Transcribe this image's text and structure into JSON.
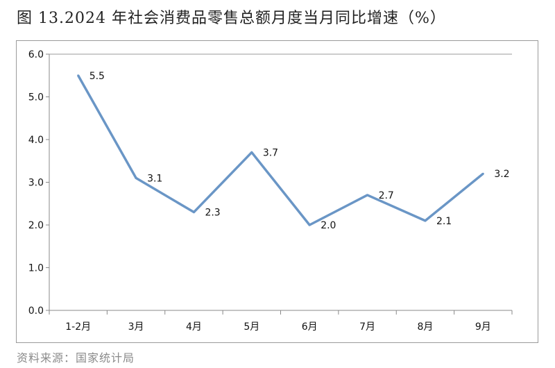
{
  "title": "图 13.2024 年社会消费品零售总额月度当月同比增速（%）",
  "source": "资料来源：国家统计局",
  "chart_data": {
    "type": "line",
    "title": "图 13.2024 年社会消费品零售总额月度当月同比增速（%）",
    "categories": [
      "1-2月",
      "3月",
      "4月",
      "5月",
      "6月",
      "7月",
      "8月",
      "9月"
    ],
    "values": [
      5.5,
      3.1,
      2.3,
      3.7,
      2.0,
      2.7,
      2.1,
      3.2
    ],
    "data_labels": [
      "5.5",
      "3.1",
      "2.3",
      "3.7",
      "2.0",
      "2.7",
      "2.1",
      "3.2"
    ],
    "ylim": [
      0,
      6
    ],
    "yticks": [
      "0.0",
      "1.0",
      "2.0",
      "3.0",
      "4.0",
      "5.0",
      "6.0"
    ],
    "grid": false,
    "legend": "none",
    "color": "#6a96c6"
  }
}
